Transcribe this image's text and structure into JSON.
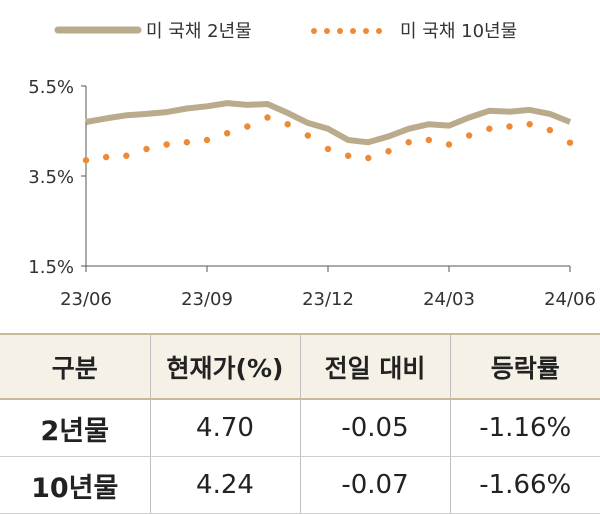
{
  "chart_data": {
    "type": "line",
    "title": "",
    "xlabel": "",
    "ylabel": "",
    "x_tick_labels": [
      "23/06",
      "23/09",
      "23/12",
      "24/03",
      "24/06"
    ],
    "y_tick_labels": [
      "5.5%",
      "3.5%",
      "1.5%"
    ],
    "y_ticks": [
      5.5,
      3.5,
      1.5
    ],
    "ylim": [
      1.5,
      5.5
    ],
    "x_unit": "month index from 23/06",
    "legend_position": "top",
    "series": [
      {
        "name": "미 국채 2년물",
        "style": "solid",
        "color": "#b9ab8c",
        "x": [
          0.0,
          0.5,
          1.0,
          1.5,
          2.0,
          2.5,
          3.0,
          3.5,
          4.0,
          4.5,
          5.0,
          5.5,
          6.0,
          6.5,
          7.0,
          7.5,
          8.0,
          8.5,
          9.0,
          9.5,
          10.0,
          10.5,
          11.0,
          11.5,
          12.0
        ],
        "values": [
          4.7,
          4.78,
          4.85,
          4.88,
          4.92,
          5.0,
          5.05,
          5.12,
          5.08,
          5.1,
          4.9,
          4.68,
          4.55,
          4.3,
          4.25,
          4.38,
          4.55,
          4.65,
          4.62,
          4.8,
          4.95,
          4.93,
          4.97,
          4.88,
          4.7
        ]
      },
      {
        "name": "미 국채 10년물",
        "style": "dotted",
        "color": "#ee8a35",
        "x": [
          0.0,
          0.5,
          1.0,
          1.5,
          2.0,
          2.5,
          3.0,
          3.5,
          4.0,
          4.5,
          5.0,
          5.5,
          6.0,
          6.5,
          7.0,
          7.5,
          8.0,
          8.5,
          9.0,
          9.5,
          10.0,
          10.5,
          11.0,
          11.5,
          12.0
        ],
        "values": [
          3.85,
          3.92,
          3.95,
          4.1,
          4.2,
          4.25,
          4.3,
          4.45,
          4.6,
          4.8,
          4.65,
          4.4,
          4.1,
          3.95,
          3.9,
          4.05,
          4.25,
          4.3,
          4.2,
          4.4,
          4.55,
          4.6,
          4.65,
          4.52,
          4.24
        ]
      }
    ]
  },
  "table": {
    "headers": [
      "구분",
      "현재가(%)",
      "전일 대비",
      "등락률"
    ],
    "rows": [
      [
        "2년물",
        "4.70",
        "-0.05",
        "-1.16%"
      ],
      [
        "10년물",
        "4.24",
        "-0.07",
        "-1.66%"
      ]
    ]
  }
}
